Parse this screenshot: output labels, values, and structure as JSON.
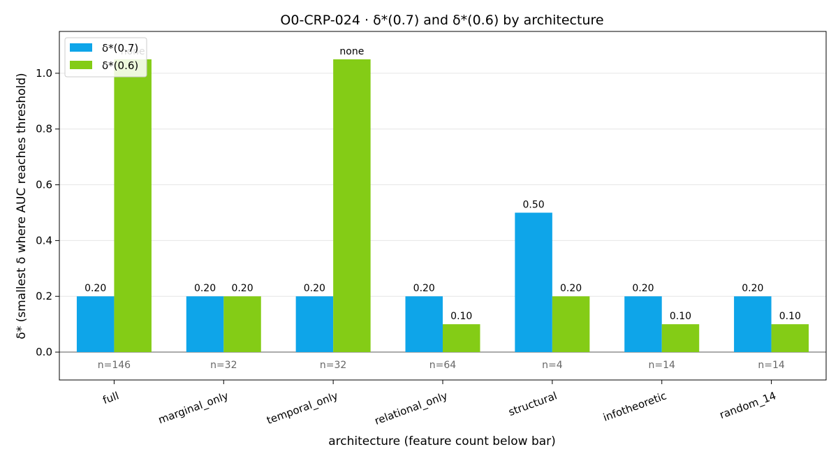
{
  "chart_data": {
    "type": "bar",
    "title": "O0-CRP-024 · δ*(0.7) and δ*(0.6) by architecture",
    "xlabel": "architecture  (feature count below bar)",
    "ylabel": "δ*  (smallest δ where AUC reaches threshold)",
    "categories": [
      "full",
      "marginal_only",
      "temporal_only",
      "relational_only",
      "structural",
      "infotheoretic",
      "random_14"
    ],
    "feature_counts": [
      "n=146",
      "n=32",
      "n=32",
      "n=64",
      "n=4",
      "n=14",
      "n=14"
    ],
    "series": [
      {
        "name": "δ*(0.7)",
        "color": "#0ea5e9",
        "values": [
          0.2,
          0.2,
          0.2,
          0.2,
          0.5,
          0.2,
          0.2
        ],
        "labels": [
          "0.20",
          "0.20",
          "0.20",
          "0.20",
          "0.50",
          "0.20",
          "0.20"
        ]
      },
      {
        "name": "δ*(0.6)",
        "color": "#84cc16",
        "values": [
          1.05,
          0.2,
          1.05,
          0.1,
          0.2,
          0.1,
          0.1
        ],
        "labels": [
          "none",
          "0.20",
          "none",
          "0.10",
          "0.20",
          "0.10",
          "0.10"
        ]
      }
    ],
    "ylim": [
      -0.1,
      1.15
    ],
    "yticks": [
      0.0,
      0.2,
      0.4,
      0.6,
      0.8,
      1.0
    ],
    "ytick_labels": [
      "0.0",
      "0.2",
      "0.4",
      "0.6",
      "0.8",
      "1.0"
    ],
    "grid": "horizontal",
    "legend": "top-left"
  }
}
